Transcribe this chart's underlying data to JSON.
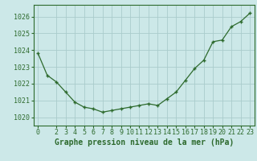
{
  "x": [
    0,
    1,
    2,
    3,
    4,
    5,
    6,
    7,
    8,
    9,
    10,
    11,
    12,
    13,
    14,
    15,
    16,
    17,
    18,
    19,
    20,
    21,
    22,
    23
  ],
  "y": [
    1023.8,
    1022.5,
    1022.1,
    1021.5,
    1020.9,
    1020.6,
    1020.5,
    1020.3,
    1020.4,
    1020.5,
    1020.6,
    1020.7,
    1020.8,
    1020.7,
    1021.1,
    1021.5,
    1022.2,
    1022.9,
    1023.4,
    1024.5,
    1024.6,
    1025.4,
    1025.7,
    1026.2
  ],
  "line_color": "#2d6a2d",
  "marker": "+",
  "bg_color": "#cce8e8",
  "grid_color": "#aacccc",
  "xlabel": "Graphe pression niveau de la mer (hPa)",
  "xlim": [
    -0.5,
    23.5
  ],
  "ylim": [
    1019.5,
    1026.7
  ],
  "yticks": [
    1020,
    1021,
    1022,
    1023,
    1024,
    1025,
    1026
  ],
  "xticks": [
    0,
    2,
    3,
    4,
    5,
    6,
    7,
    8,
    9,
    10,
    11,
    12,
    13,
    14,
    15,
    16,
    17,
    18,
    19,
    20,
    21,
    22,
    23
  ],
  "xlabel_fontsize": 7.0,
  "tick_fontsize": 6.0
}
